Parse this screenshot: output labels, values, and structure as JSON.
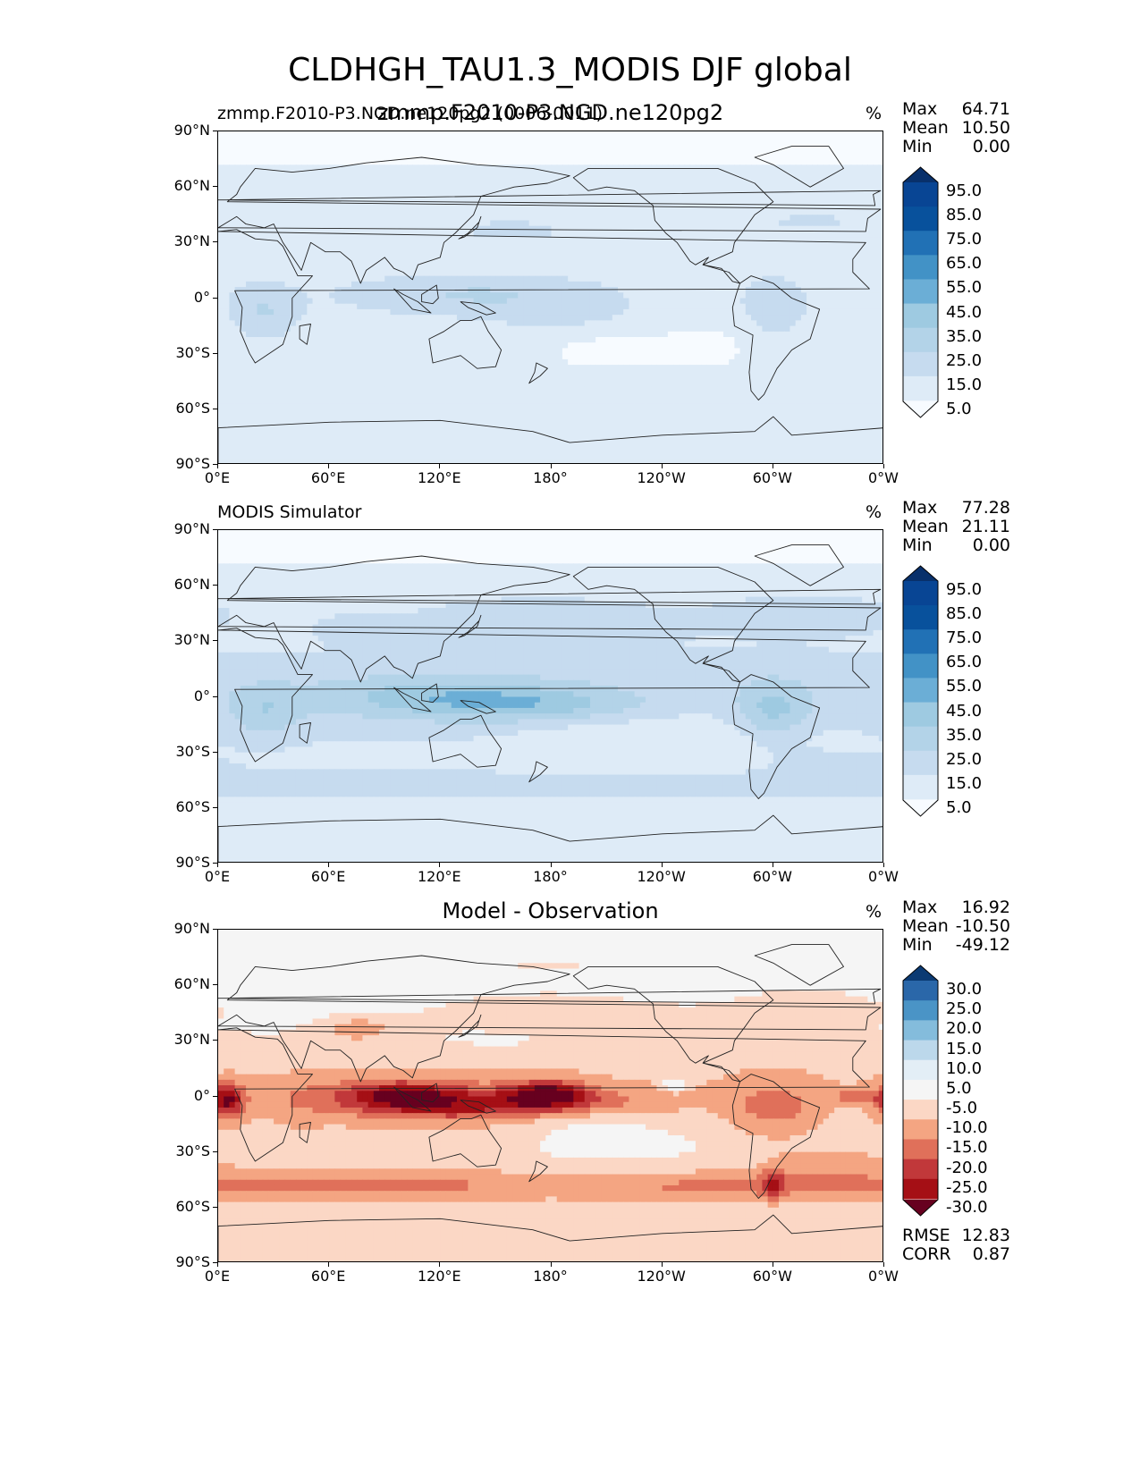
{
  "title": "CLDHGH_TAU1.3_MODIS DJF global",
  "colors": {
    "blues": [
      "#f7fbff",
      "#deebf7",
      "#c6dbef",
      "#b3d3e8",
      "#9ecae1",
      "#6baed6",
      "#4292c6",
      "#2171b5",
      "#08519c",
      "#084594",
      "#08306b"
    ],
    "reds_diff": [
      "#67001f",
      "#a50f15",
      "#c1383a",
      "#e0705a",
      "#f4a582",
      "#fbd7c5",
      "#f5f5f5",
      "#e3eef6",
      "#bcd8eb",
      "#84bcdc",
      "#4a94c6",
      "#2a67a9",
      "#0b3a73"
    ]
  },
  "chart_data": [
    {
      "type": "heatmap",
      "title": "zmmp.F2010-P3.NGD.ne120pg2",
      "title_overprint": "zmmp.F2010-P3.NGD.ne120pg2 (0006-0011)",
      "units": "%",
      "xlabel": "",
      "ylabel": "",
      "xticks": [
        "0°E",
        "60°E",
        "120°E",
        "180°",
        "120°W",
        "60°W",
        "0°W"
      ],
      "yticks": [
        "90°N",
        "60°N",
        "30°N",
        "0°",
        "30°S",
        "60°S",
        "90°S"
      ],
      "xlim": [
        0,
        360
      ],
      "ylim": [
        -90,
        90
      ],
      "stats": [
        {
          "label": "Max",
          "value": "64.71"
        },
        {
          "label": "Mean",
          "value": "10.50"
        },
        {
          "label": "Min",
          "value": "0.00"
        }
      ],
      "colorbar_levels": [
        "95.0",
        "85.0",
        "75.0",
        "65.0",
        "55.0",
        "45.0",
        "35.0",
        "25.0",
        "15.0",
        "5.0"
      ],
      "colorbar_extend": "both"
    },
    {
      "type": "heatmap",
      "title": "MODIS Simulator",
      "units": "%",
      "xlabel": "",
      "ylabel": "",
      "xticks": [
        "0°E",
        "60°E",
        "120°E",
        "180°",
        "120°W",
        "60°W",
        "0°W"
      ],
      "yticks": [
        "90°N",
        "60°N",
        "30°N",
        "0°",
        "30°S",
        "60°S",
        "90°S"
      ],
      "xlim": [
        0,
        360
      ],
      "ylim": [
        -90,
        90
      ],
      "stats": [
        {
          "label": "Max",
          "value": "77.28"
        },
        {
          "label": "Mean",
          "value": "21.11"
        },
        {
          "label": "Min",
          "value": "0.00"
        }
      ],
      "colorbar_levels": [
        "95.0",
        "85.0",
        "75.0",
        "65.0",
        "55.0",
        "45.0",
        "35.0",
        "25.0",
        "15.0",
        "5.0"
      ],
      "colorbar_extend": "both"
    },
    {
      "type": "heatmap",
      "title": "Model - Observation",
      "units": "%",
      "xlabel": "",
      "ylabel": "",
      "xticks": [
        "0°E",
        "60°E",
        "120°E",
        "180°",
        "120°W",
        "60°W",
        "0°W"
      ],
      "yticks": [
        "90°N",
        "60°N",
        "30°N",
        "0°",
        "30°S",
        "60°S",
        "90°S"
      ],
      "xlim": [
        0,
        360
      ],
      "ylim": [
        -90,
        90
      ],
      "stats": [
        {
          "label": "Max",
          "value": "16.92"
        },
        {
          "label": "Mean",
          "value": "-10.50"
        },
        {
          "label": "Min",
          "value": "-49.12"
        }
      ],
      "colorbar_levels": [
        "30.0",
        "25.0",
        "20.0",
        "15.0",
        "10.0",
        "5.0",
        "-5.0",
        "-10.0",
        "-15.0",
        "-20.0",
        "-25.0",
        "-30.0"
      ],
      "colorbar_extend": "both",
      "bottom_stats": [
        {
          "label": "RMSE",
          "value": "12.83"
        },
        {
          "label": "CORR",
          "value": "0.87"
        }
      ]
    }
  ]
}
